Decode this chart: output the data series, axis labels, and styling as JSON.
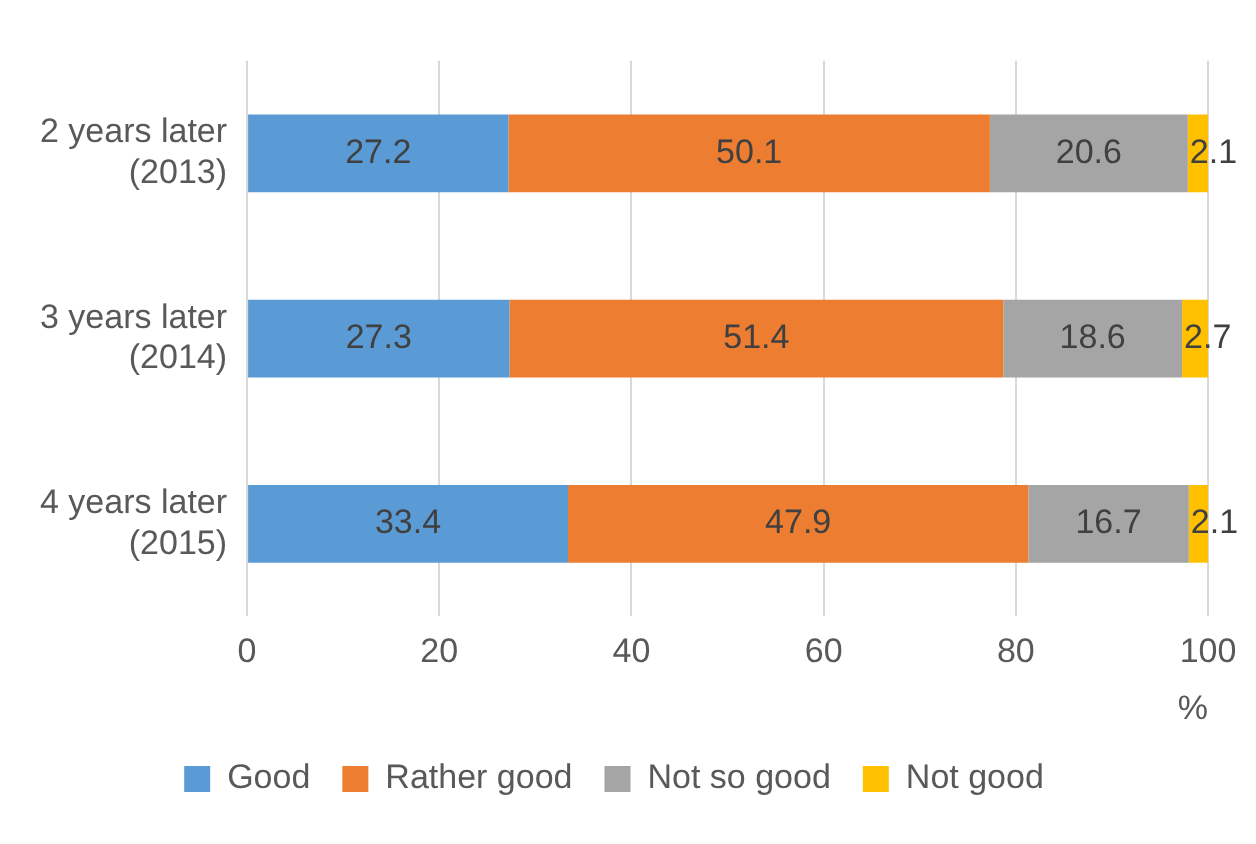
{
  "chart_data": {
    "type": "bar",
    "orientation": "horizontal",
    "stacked": true,
    "categories": [
      "2 years later\n(2013)",
      "3 years later\n(2014)",
      "4 years later\n(2015)"
    ],
    "series": [
      {
        "name": "Good",
        "color": "#5b9bd5",
        "values": [
          27.2,
          27.3,
          33.4
        ]
      },
      {
        "name": "Rather good",
        "color": "#ed7d31",
        "values": [
          50.1,
          51.4,
          47.9
        ]
      },
      {
        "name": "Not so good",
        "color": "#a5a5a5",
        "values": [
          20.6,
          18.6,
          16.7
        ]
      },
      {
        "name": "Not good",
        "color": "#ffc000",
        "values": [
          2.1,
          2.7,
          2.1
        ]
      }
    ],
    "xlabel": "%",
    "xlim": [
      0,
      100
    ],
    "xticks": [
      0,
      20,
      40,
      60,
      80,
      100
    ],
    "grid": "x",
    "legend": "bottom",
    "data_labels": true
  }
}
